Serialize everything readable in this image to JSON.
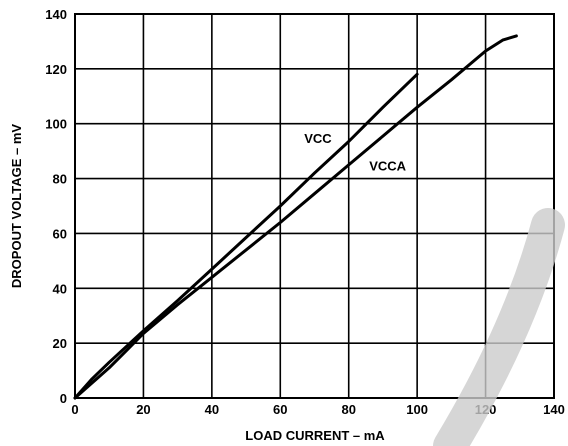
{
  "chart_data": {
    "type": "line",
    "title": "",
    "xlabel": "LOAD CURRENT – mA",
    "ylabel": "DROPOUT VOLTAGE – mV",
    "xlim": [
      0,
      140
    ],
    "ylim": [
      0,
      140
    ],
    "x_ticks": [
      "0",
      "20",
      "40",
      "60",
      "80",
      "100",
      "120",
      "140"
    ],
    "y_ticks": [
      "0",
      "20",
      "40",
      "60",
      "80",
      "100",
      "120",
      "140"
    ],
    "grid": true,
    "legend": "none",
    "series": [
      {
        "name": "VCC",
        "points": [
          [
            0,
            0
          ],
          [
            5,
            7
          ],
          [
            10,
            13
          ],
          [
            20,
            24.5
          ],
          [
            30,
            35.5
          ],
          [
            40,
            47
          ],
          [
            50,
            58.5
          ],
          [
            60,
            70
          ],
          [
            70,
            82
          ],
          [
            80,
            93.5
          ],
          [
            90,
            106
          ],
          [
            100,
            118
          ]
        ]
      },
      {
        "name": "VCCA",
        "points": [
          [
            0,
            0
          ],
          [
            5,
            5.5
          ],
          [
            10,
            11
          ],
          [
            20,
            23.5
          ],
          [
            30,
            34
          ],
          [
            40,
            44
          ],
          [
            50,
            54
          ],
          [
            60,
            64
          ],
          [
            70,
            74.5
          ],
          [
            80,
            85
          ],
          [
            90,
            95.5
          ],
          [
            100,
            106
          ],
          [
            110,
            116
          ],
          [
            120,
            126.5
          ],
          [
            125,
            130.5
          ],
          [
            129,
            132
          ]
        ]
      }
    ],
    "annotations": [
      {
        "text": "VCC",
        "x": 67,
        "y": 93
      },
      {
        "text": "VCCA",
        "x": 86,
        "y": 83
      }
    ]
  }
}
